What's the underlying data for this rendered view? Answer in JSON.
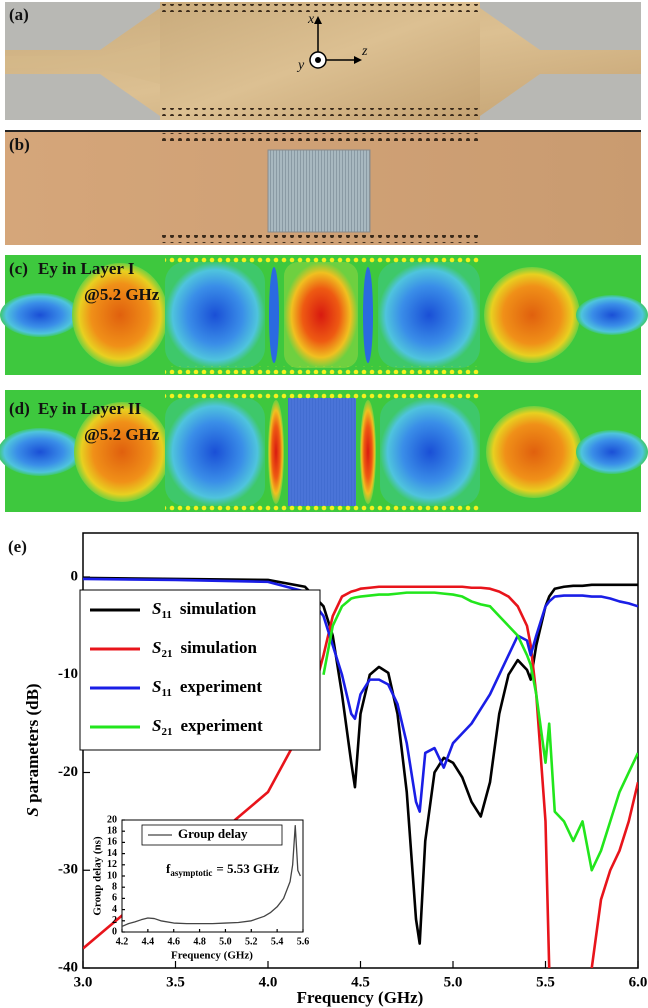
{
  "panels": [
    {
      "label": "(a)",
      "axis_labels": [
        "x",
        "y",
        "z"
      ]
    },
    {
      "label": "(b)"
    },
    {
      "label": "(c)",
      "title": "Ey in Layer I",
      "frequency": "@5.2 GHz"
    },
    {
      "label": "(d)",
      "title": "Ey in Layer II",
      "frequency": "@5.2 GHz"
    }
  ],
  "chart_data": [
    {
      "type": "line",
      "panel_label": "(e)",
      "x_label": "Frequency (GHz)",
      "y_label": "S parameters (dB)",
      "xlim": [
        3,
        6
      ],
      "ylim": [
        -40,
        4.5
      ],
      "xticks": [
        {
          "value": 3,
          "label": "3.0"
        },
        {
          "value": 3.5,
          "label": "3.5"
        },
        {
          "value": 4,
          "label": "4.0"
        },
        {
          "value": 4.5,
          "label": "4.5"
        },
        {
          "value": 5,
          "label": "5.0"
        },
        {
          "value": 5.5,
          "label": "5.5"
        },
        {
          "value": 6,
          "label": "6.0"
        }
      ],
      "yticks": [
        0,
        -10,
        -20,
        -30,
        -40
      ],
      "legend": "upper left",
      "x": [
        3.0,
        3.5,
        4.0,
        4.2,
        4.3,
        4.35,
        4.4,
        4.45,
        4.47,
        4.5,
        4.55,
        4.6,
        4.65,
        4.7,
        4.75,
        4.8,
        4.82,
        4.85,
        4.9,
        4.95,
        5.0,
        5.05,
        5.1,
        5.15,
        5.2,
        5.25,
        5.3,
        5.35,
        5.4,
        5.42,
        5.45,
        5.5,
        5.52,
        5.55,
        5.6,
        5.65,
        5.7,
        5.75,
        5.8,
        5.85,
        5.9,
        5.95,
        6.0
      ],
      "series": [
        {
          "name": "S11 simulation",
          "color": "#000000",
          "values": [
            -0.1,
            -0.2,
            -0.3,
            -1,
            -3,
            -6,
            -12,
            -19,
            -21.5,
            -14,
            -10,
            -9.2,
            -9.8,
            -14,
            -22,
            -35,
            -37.5,
            -27,
            -20,
            -18.5,
            -19,
            -20.5,
            -23,
            -24.5,
            -21,
            -14,
            -10,
            -8.5,
            -9.5,
            -10.5,
            -7,
            -3,
            -2,
            -1.2,
            -1,
            -0.9,
            -0.9,
            -0.8,
            -0.8,
            -0.8,
            -0.8,
            -0.8,
            -0.8
          ]
        },
        {
          "name": "S21 simulation",
          "color": "#e8141b",
          "values": [
            -38,
            -30,
            -22,
            -15,
            -8,
            -4,
            -2,
            -1.5,
            -1.4,
            -1.2,
            -1.1,
            -1,
            -1,
            -1,
            -1,
            -1,
            -1,
            -1,
            -1,
            -1,
            -1,
            -1,
            -1.1,
            -1.1,
            -1.2,
            -1.5,
            -2,
            -3,
            -5,
            -7,
            -12,
            -25,
            -40,
            null,
            null,
            null,
            null,
            -40,
            -33,
            -30,
            -28,
            -25,
            -21
          ]
        },
        {
          "name": "S11 experiment",
          "color": "#1a1ee6",
          "values": [
            -0.2,
            -0.3,
            -0.5,
            -1.5,
            -4,
            -7,
            -10,
            -14,
            -14.5,
            -12,
            -10.5,
            -10.5,
            -11,
            -13,
            -17,
            -23,
            -24,
            -18,
            -17.5,
            -19.5,
            -17,
            -16,
            -15,
            -13.5,
            -12,
            -10,
            -8,
            -6,
            -6.5,
            -8,
            -6,
            -3,
            -2.5,
            -2,
            -1.9,
            -1.9,
            -1.9,
            -2,
            -2,
            -2.2,
            -2.5,
            -2.7,
            -3
          ]
        },
        {
          "name": "S21 experiment",
          "color": "#22e61c",
          "values": [
            null,
            null,
            null,
            null,
            -10,
            -5,
            -3,
            -2.2,
            -2.1,
            -2,
            -1.9,
            -1.8,
            -1.8,
            -1.7,
            -1.6,
            -1.6,
            -1.6,
            -1.6,
            -1.6,
            -1.7,
            -1.8,
            -2,
            -2.5,
            -2.8,
            -3,
            -4,
            -5,
            -6,
            -8,
            -9,
            -12,
            -19,
            -15,
            -24,
            -25,
            -27,
            -25,
            -30,
            -28,
            -25,
            -22,
            -20,
            -18
          ]
        }
      ]
    },
    {
      "type": "line",
      "x_label": "Frequency (GHz)",
      "y_label": "Group delay (ns)",
      "xlim": [
        4.2,
        5.6
      ],
      "ylim": [
        0,
        20
      ],
      "xticks": [
        4.2,
        4.4,
        4.6,
        4.8,
        {
          "value": 5,
          "label": "5.0"
        },
        5.2,
        5.4,
        5.6
      ],
      "yticks": [
        0,
        2,
        4,
        6,
        8,
        10,
        12,
        14,
        16,
        18,
        20
      ],
      "annotation": {
        "symbol": "f",
        "subscript": "asymptotic",
        "text": "= 5.53 GHz"
      },
      "x": [
        4.2,
        4.25,
        4.3,
        4.35,
        4.4,
        4.45,
        4.5,
        4.6,
        4.7,
        4.8,
        4.9,
        5.0,
        5.1,
        5.2,
        5.3,
        5.35,
        5.4,
        5.45,
        5.5,
        5.52,
        5.54,
        5.55,
        5.56,
        5.58
      ],
      "series": [
        {
          "name": "Group delay",
          "color": "#444444",
          "values": [
            1,
            1.5,
            1.8,
            2.2,
            2.5,
            2.4,
            2,
            1.6,
            1.5,
            1.5,
            1.5,
            1.6,
            1.7,
            2,
            2.8,
            3.5,
            4.5,
            6,
            9,
            12,
            19,
            15,
            11,
            10
          ]
        }
      ]
    }
  ]
}
